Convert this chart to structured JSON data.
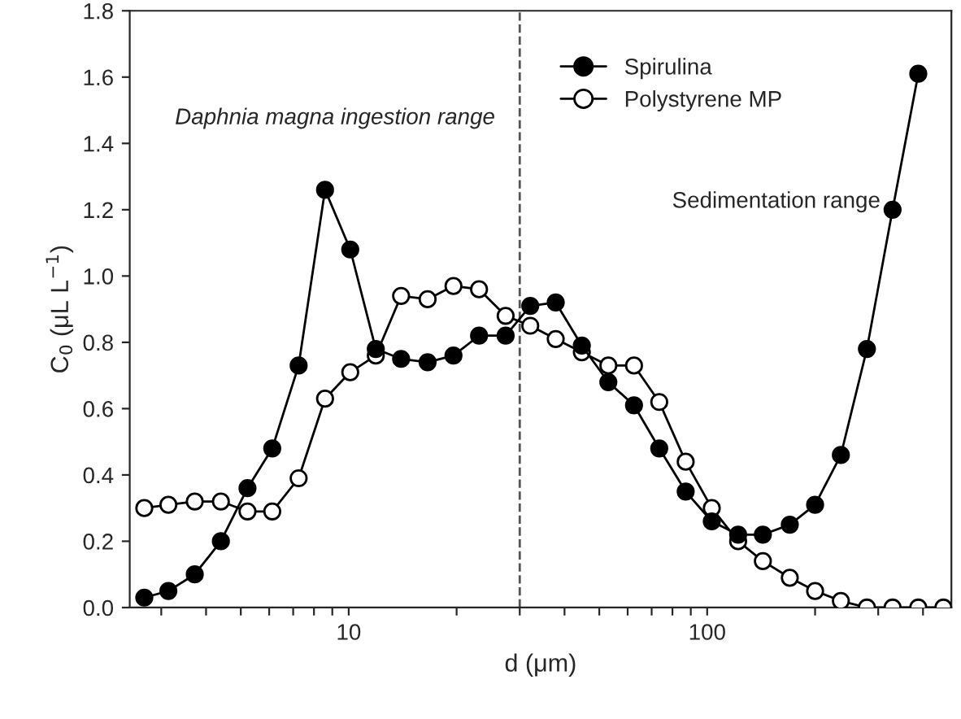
{
  "chart_data": {
    "type": "line",
    "xlabel": "d (μm)",
    "ylabel": "C$_{0}$ (μL L$^{−1}$)",
    "log": "x",
    "xlim": [
      2.45,
      480
    ],
    "xticks": [
      {
        "value": 3,
        "label": null
      },
      {
        "value": 4,
        "label": null
      },
      {
        "value": 5,
        "label": null
      },
      {
        "value": 6,
        "label": null
      },
      {
        "value": 7,
        "label": null
      },
      {
        "value": 8,
        "label": null
      },
      {
        "value": 9,
        "label": null
      },
      10,
      {
        "value": 20,
        "label": null
      },
      {
        "value": 30,
        "label": null
      },
      {
        "value": 40,
        "label": null
      },
      {
        "value": 50,
        "label": null
      },
      {
        "value": 60,
        "label": null
      },
      {
        "value": 70,
        "label": null
      },
      {
        "value": 80,
        "label": null
      },
      {
        "value": 90,
        "label": null
      },
      100,
      {
        "value": 200,
        "label": null
      },
      {
        "value": 300,
        "label": null
      },
      {
        "value": 400,
        "label": null
      }
    ],
    "ylim": [
      0,
      1.8
    ],
    "yticks": [
      {
        "value": 0,
        "label": "0.0"
      },
      {
        "value": 0.2,
        "label": "0.2"
      },
      {
        "value": 0.4,
        "label": "0.4"
      },
      {
        "value": 0.6,
        "label": "0.6"
      },
      {
        "value": 0.8,
        "label": "0.8"
      },
      {
        "value": 1.0,
        "label": "1.0"
      },
      {
        "value": 1.2,
        "label": "1.2"
      },
      {
        "value": 1.4,
        "label": "1.4"
      },
      {
        "value": 1.6,
        "label": "1.6"
      },
      {
        "value": 1.8,
        "label": "1.8"
      }
    ],
    "marker": "circle",
    "line_style": "solid",
    "grid": false,
    "legend": "top",
    "ref_lines": [
      {
        "axis": "x",
        "value": 30,
        "label": null,
        "line_style": "dashed",
        "color": "#555555"
      }
    ],
    "annotations": [
      "Daphnia magna ingestion range",
      "Sedimentation range"
    ],
    "series": [
      {
        "name": "Spirulina",
        "color": "#000000",
        "x": [
          2.69,
          3.14,
          3.72,
          4.4,
          5.22,
          6.12,
          7.25,
          8.59,
          10.1,
          11.9,
          14.0,
          16.6,
          19.6,
          23.1,
          27.4,
          32.1,
          37.8,
          44.7,
          53.0,
          62.5,
          73.5,
          87.1,
          103,
          122,
          143,
          170,
          200,
          236,
          279,
          329,
          388
        ],
        "values": [
          0.03,
          0.05,
          0.1,
          0.2,
          0.36,
          0.48,
          0.73,
          1.26,
          1.08,
          0.78,
          0.75,
          0.74,
          0.76,
          0.82,
          0.82,
          0.91,
          0.92,
          0.79,
          0.68,
          0.61,
          0.48,
          0.35,
          0.26,
          0.22,
          0.22,
          0.25,
          0.31,
          0.46,
          0.78,
          1.2,
          1.61
        ]
      },
      {
        "name": "Polystyrene MP",
        "color": "#ffffff",
        "x": [
          2.69,
          3.14,
          3.72,
          4.4,
          5.22,
          6.12,
          7.25,
          8.59,
          10.1,
          11.9,
          14.0,
          16.6,
          19.6,
          23.1,
          27.4,
          32.1,
          37.8,
          44.7,
          53.0,
          62.5,
          73.5,
          87.1,
          103,
          122,
          143,
          170,
          200,
          236,
          279,
          329,
          388,
          456
        ],
        "values": [
          0.3,
          0.31,
          0.32,
          0.32,
          0.29,
          0.29,
          0.39,
          0.63,
          0.71,
          0.76,
          0.94,
          0.93,
          0.97,
          0.96,
          0.88,
          0.85,
          0.81,
          0.77,
          0.73,
          0.73,
          0.62,
          0.44,
          0.3,
          0.2,
          0.14,
          0.09,
          0.05,
          0.02,
          0,
          0,
          0,
          0
        ]
      }
    ]
  }
}
